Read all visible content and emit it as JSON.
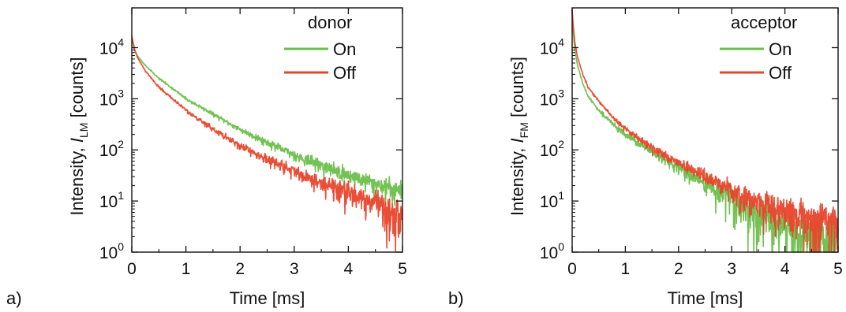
{
  "figure": {
    "panel_labels": [
      "a)",
      "b)"
    ],
    "series_colors": {
      "On": "#6cbf4a",
      "Off": "#e8452b"
    }
  },
  "chart_data": [
    {
      "type": "line",
      "panel": "a)",
      "xlabel": "Time [ms]",
      "ylabel_prefix": "Intensity, ",
      "ylabel_symbol": "I",
      "ylabel_subscript": "LM",
      "ylabel_suffix": " [counts]",
      "xlim": [
        0,
        5
      ],
      "ylim": [
        1,
        60000
      ],
      "yscale": "log",
      "x_ticks": [
        "0",
        "1",
        "2",
        "3",
        "4",
        "5"
      ],
      "y_ticks": [
        "10^0",
        "10^1",
        "10^2",
        "10^3",
        "10^4"
      ],
      "legend": {
        "title": "donor",
        "placement": "top-right",
        "entries": [
          "On",
          "Off"
        ]
      },
      "series": [
        {
          "name": "On",
          "color": "#6cbf4a",
          "x": [
            0,
            0.05,
            0.1,
            0.25,
            0.5,
            0.75,
            1,
            1.5,
            2,
            2.5,
            3,
            3.5,
            4,
            4.5,
            5
          ],
          "y": [
            15000,
            9000,
            7000,
            4500,
            2500,
            1600,
            1000,
            500,
            250,
            140,
            80,
            50,
            32,
            22,
            16
          ]
        },
        {
          "name": "Off",
          "color": "#e8452b",
          "x": [
            0,
            0.05,
            0.1,
            0.25,
            0.5,
            0.75,
            1,
            1.5,
            2,
            2.5,
            3,
            3.5,
            4,
            4.5,
            5
          ],
          "y": [
            17000,
            9500,
            6500,
            3500,
            1700,
            1000,
            600,
            250,
            120,
            65,
            38,
            22,
            15,
            9,
            5
          ]
        }
      ]
    },
    {
      "type": "line",
      "panel": "b)",
      "xlabel": "Time [ms]",
      "ylabel_prefix": "Intensity, ",
      "ylabel_symbol": "I",
      "ylabel_subscript": "FM",
      "ylabel_suffix": "  [counts]",
      "xlim": [
        0,
        5
      ],
      "ylim": [
        1,
        60000
      ],
      "yscale": "log",
      "x_ticks": [
        "0",
        "1",
        "2",
        "3",
        "4",
        "5"
      ],
      "y_ticks": [
        "10^0",
        "10^1",
        "10^2",
        "10^3",
        "10^4"
      ],
      "legend": {
        "title": "acceptor",
        "placement": "top-right",
        "entries": [
          "On",
          "Off"
        ]
      },
      "series": [
        {
          "name": "On",
          "color": "#6cbf4a",
          "x": [
            0,
            0.02,
            0.05,
            0.1,
            0.2,
            0.3,
            0.5,
            0.75,
            1,
            1.5,
            2,
            2.5,
            3,
            3.5,
            4,
            4.5,
            5
          ],
          "y": [
            45000,
            20000,
            9000,
            4500,
            2000,
            1100,
            600,
            330,
            200,
            90,
            45,
            22,
            11,
            5,
            3,
            2,
            1.5
          ]
        },
        {
          "name": "Off",
          "color": "#e8452b",
          "x": [
            0,
            0.02,
            0.05,
            0.1,
            0.2,
            0.3,
            0.5,
            0.75,
            1,
            1.5,
            2,
            2.5,
            3,
            3.5,
            4,
            4.5,
            5
          ],
          "y": [
            55000,
            28000,
            13000,
            6500,
            3000,
            1700,
            900,
            450,
            260,
            110,
            55,
            30,
            16,
            9,
            6,
            4.5,
            4
          ]
        }
      ]
    }
  ]
}
